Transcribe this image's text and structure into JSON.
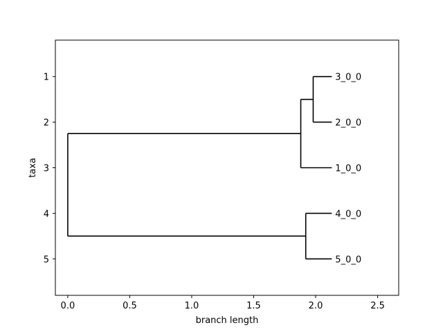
{
  "chart_data": {
    "type": "dendrogram",
    "xlabel": "branch length",
    "ylabel": "taxa",
    "xlim": [
      -0.1,
      2.67
    ],
    "ylim": [
      5.8,
      0.2
    ],
    "xticks": [
      0.0,
      0.5,
      1.0,
      1.5,
      2.0,
      2.5
    ],
    "xtick_labels": [
      "0.0",
      "0.5",
      "1.0",
      "1.5",
      "2.0",
      "2.5"
    ],
    "yticks": [
      1,
      2,
      3,
      4,
      5
    ],
    "ytick_labels": [
      "1",
      "2",
      "3",
      "4",
      "5"
    ],
    "grid": false,
    "leaves": [
      {
        "name": "3_0_0",
        "x": 2.13,
        "y": 1
      },
      {
        "name": "2_0_0",
        "x": 2.13,
        "y": 2
      },
      {
        "name": "1_0_0",
        "x": 2.13,
        "y": 3
      },
      {
        "name": "4_0_0",
        "x": 2.13,
        "y": 4
      },
      {
        "name": "5_0_0",
        "x": 2.13,
        "y": 5
      }
    ],
    "internal_nodes": [
      {
        "x": 1.98,
        "y_span": [
          1,
          2
        ],
        "y": 1.5
      },
      {
        "x": 1.88,
        "y_span": [
          1.5,
          3
        ],
        "y": 2.25
      },
      {
        "x": 1.92,
        "y_span": [
          4,
          5
        ],
        "y": 4.5
      },
      {
        "x": 0.0,
        "y_span": [
          2.25,
          4.5
        ],
        "y": 3.375
      }
    ],
    "branches": [
      {
        "x0": 0.0,
        "x1": 1.88,
        "y": 2.25
      },
      {
        "x0": 0.0,
        "x1": 1.92,
        "y": 4.5
      },
      {
        "x0": 1.88,
        "x1": 1.98,
        "y": 1.5
      },
      {
        "x0": 1.88,
        "x1": 2.13,
        "y": 3
      },
      {
        "x0": 1.98,
        "x1": 2.13,
        "y": 1
      },
      {
        "x0": 1.98,
        "x1": 2.13,
        "y": 2
      },
      {
        "x0": 1.92,
        "x1": 2.13,
        "y": 4
      },
      {
        "x0": 1.92,
        "x1": 2.13,
        "y": 5
      }
    ],
    "colors": {
      "line": "#000000",
      "axes": "#000000"
    }
  }
}
